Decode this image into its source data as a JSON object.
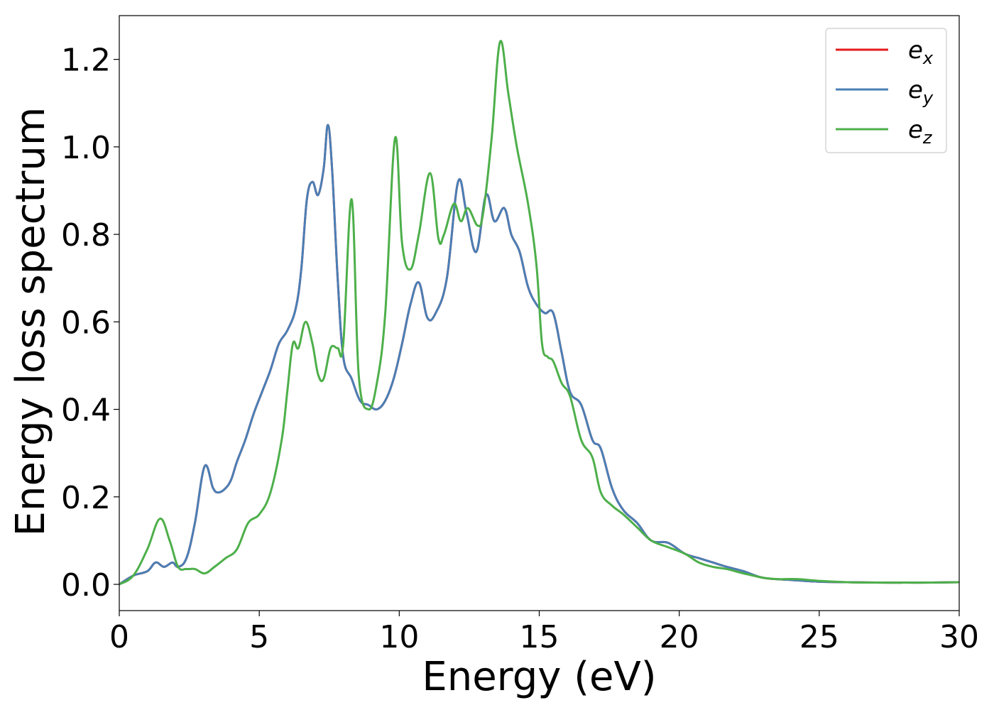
{
  "chart_data": {
    "type": "line",
    "xlabel": "Energy (eV)",
    "ylabel": "Energy loss spectrum",
    "xlim": [
      0,
      30
    ],
    "ylim": [
      -0.06,
      1.3
    ],
    "xticks": [
      0,
      5,
      10,
      15,
      20,
      25,
      30
    ],
    "xtick_labels": [
      "0",
      "5",
      "10",
      "15",
      "20",
      "25",
      "30"
    ],
    "yticks": [
      0.0,
      0.2,
      0.4,
      0.6,
      0.8,
      1.0,
      1.2
    ],
    "ytick_labels": [
      "0.0",
      "0.2",
      "0.4",
      "0.6",
      "0.8",
      "1.0",
      "1.2"
    ],
    "grid": false,
    "legend_position": "top-right",
    "series": [
      {
        "name": "e",
        "sub": "x",
        "color": "#e41a1c",
        "x": [
          0,
          0.5,
          1.0,
          1.3,
          1.6,
          1.9,
          2.1,
          2.4,
          2.7,
          3.05,
          3.35,
          3.55,
          3.8,
          4.0,
          4.2,
          4.5,
          4.8,
          5.1,
          5.4,
          5.7,
          6.0,
          6.3,
          6.5,
          6.7,
          6.9,
          7.1,
          7.3,
          7.45,
          7.6,
          7.8,
          8.0,
          8.3,
          8.6,
          8.9,
          9.2,
          9.5,
          9.8,
          10.1,
          10.4,
          10.7,
          11.0,
          11.3,
          11.7,
          12.1,
          12.4,
          12.75,
          13.1,
          13.4,
          13.75,
          14.0,
          14.3,
          14.6,
          14.9,
          15.2,
          15.5,
          15.8,
          16.1,
          16.5,
          16.9,
          17.2,
          17.6,
          18.0,
          18.5,
          19.0,
          19.6,
          20.2,
          20.7,
          21.2,
          21.7,
          22.3,
          23.0,
          24.0,
          25.0,
          26.0,
          27.0,
          28.0,
          29.0,
          30.0
        ],
        "y": [
          0.0,
          0.02,
          0.03,
          0.05,
          0.04,
          0.05,
          0.04,
          0.06,
          0.14,
          0.27,
          0.22,
          0.21,
          0.22,
          0.24,
          0.28,
          0.33,
          0.39,
          0.44,
          0.49,
          0.55,
          0.58,
          0.63,
          0.72,
          0.88,
          0.92,
          0.89,
          0.95,
          1.05,
          0.95,
          0.7,
          0.52,
          0.47,
          0.42,
          0.41,
          0.4,
          0.42,
          0.47,
          0.55,
          0.64,
          0.69,
          0.61,
          0.62,
          0.7,
          0.92,
          0.85,
          0.76,
          0.89,
          0.83,
          0.86,
          0.8,
          0.76,
          0.68,
          0.64,
          0.62,
          0.62,
          0.53,
          0.44,
          0.41,
          0.33,
          0.31,
          0.22,
          0.17,
          0.14,
          0.1,
          0.095,
          0.07,
          0.06,
          0.05,
          0.04,
          0.03,
          0.015,
          0.01,
          0.006,
          0.005,
          0.004,
          0.004,
          0.004,
          0.005
        ]
      },
      {
        "name": "e",
        "sub": "y",
        "color": "#4a7fb5",
        "x": [
          0,
          0.5,
          1.0,
          1.3,
          1.6,
          1.9,
          2.1,
          2.4,
          2.7,
          3.05,
          3.35,
          3.55,
          3.8,
          4.0,
          4.2,
          4.5,
          4.8,
          5.1,
          5.4,
          5.7,
          6.0,
          6.3,
          6.5,
          6.7,
          6.9,
          7.1,
          7.3,
          7.45,
          7.6,
          7.8,
          8.0,
          8.3,
          8.6,
          8.9,
          9.2,
          9.5,
          9.8,
          10.1,
          10.4,
          10.7,
          11.0,
          11.3,
          11.7,
          12.1,
          12.4,
          12.75,
          13.1,
          13.4,
          13.75,
          14.0,
          14.3,
          14.6,
          14.9,
          15.2,
          15.5,
          15.8,
          16.1,
          16.5,
          16.9,
          17.2,
          17.6,
          18.0,
          18.5,
          19.0,
          19.6,
          20.2,
          20.7,
          21.2,
          21.7,
          22.3,
          23.0,
          24.0,
          25.0,
          26.0,
          27.0,
          28.0,
          29.0,
          30.0
        ],
        "y": [
          0.0,
          0.02,
          0.03,
          0.05,
          0.04,
          0.05,
          0.04,
          0.06,
          0.14,
          0.27,
          0.22,
          0.21,
          0.22,
          0.24,
          0.28,
          0.33,
          0.39,
          0.44,
          0.49,
          0.55,
          0.58,
          0.63,
          0.72,
          0.88,
          0.92,
          0.89,
          0.95,
          1.05,
          0.95,
          0.7,
          0.52,
          0.47,
          0.42,
          0.41,
          0.4,
          0.42,
          0.47,
          0.55,
          0.64,
          0.69,
          0.61,
          0.62,
          0.7,
          0.92,
          0.85,
          0.76,
          0.89,
          0.83,
          0.86,
          0.8,
          0.76,
          0.68,
          0.64,
          0.62,
          0.62,
          0.53,
          0.44,
          0.41,
          0.33,
          0.31,
          0.22,
          0.17,
          0.14,
          0.1,
          0.095,
          0.07,
          0.06,
          0.05,
          0.04,
          0.03,
          0.015,
          0.01,
          0.006,
          0.005,
          0.004,
          0.004,
          0.004,
          0.005
        ]
      },
      {
        "name": "e",
        "sub": "z",
        "color": "#4daf4a",
        "x": [
          0,
          0.5,
          1.0,
          1.45,
          1.8,
          2.1,
          2.4,
          2.7,
          3.05,
          3.4,
          3.8,
          4.2,
          4.6,
          5.0,
          5.4,
          5.8,
          6.0,
          6.2,
          6.4,
          6.65,
          6.9,
          7.1,
          7.3,
          7.55,
          7.8,
          8.0,
          8.3,
          8.55,
          8.9,
          9.2,
          9.5,
          9.85,
          10.1,
          10.4,
          10.7,
          11.1,
          11.4,
          11.6,
          11.95,
          12.2,
          12.45,
          12.8,
          13.0,
          13.3,
          13.6,
          13.9,
          14.2,
          14.6,
          14.9,
          15.1,
          15.3,
          15.5,
          15.8,
          16.1,
          16.5,
          16.9,
          17.2,
          17.6,
          18.0,
          18.5,
          19.0,
          19.6,
          20.2,
          20.7,
          21.2,
          21.7,
          22.3,
          23.0,
          23.5,
          24.2,
          25.0,
          26.0,
          27.0,
          28.0,
          29.0,
          30.0
        ],
        "y": [
          0.0,
          0.02,
          0.08,
          0.15,
          0.1,
          0.04,
          0.035,
          0.035,
          0.025,
          0.04,
          0.06,
          0.08,
          0.14,
          0.16,
          0.21,
          0.33,
          0.44,
          0.55,
          0.54,
          0.6,
          0.55,
          0.48,
          0.47,
          0.54,
          0.54,
          0.55,
          0.88,
          0.48,
          0.4,
          0.46,
          0.62,
          1.02,
          0.78,
          0.72,
          0.8,
          0.94,
          0.79,
          0.8,
          0.87,
          0.83,
          0.86,
          0.82,
          0.85,
          1.02,
          1.24,
          1.12,
          1.0,
          0.87,
          0.73,
          0.55,
          0.52,
          0.51,
          0.46,
          0.43,
          0.33,
          0.29,
          0.21,
          0.18,
          0.16,
          0.13,
          0.1,
          0.085,
          0.07,
          0.05,
          0.04,
          0.035,
          0.025,
          0.015,
          0.012,
          0.012,
          0.008,
          0.005,
          0.004,
          0.004,
          0.004,
          0.005
        ]
      }
    ]
  }
}
